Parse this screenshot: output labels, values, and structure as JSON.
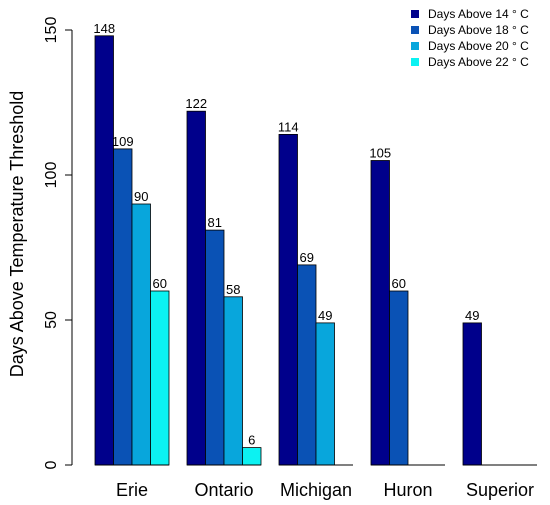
{
  "chart_data": {
    "type": "bar",
    "categories": [
      "Erie",
      "Ontario",
      "Michigan",
      "Huron",
      "Superior"
    ],
    "series": [
      {
        "name": "Days Above 14 ° C",
        "color": "#00008B",
        "values": [
          148,
          122,
          114,
          105,
          49
        ]
      },
      {
        "name": "Days Above 18 ° C",
        "color": "#0A52B5",
        "values": [
          109,
          81,
          69,
          60,
          0
        ]
      },
      {
        "name": "Days Above 20 ° C",
        "color": "#08A6DC",
        "values": [
          90,
          58,
          49,
          0,
          0
        ]
      },
      {
        "name": "Days Above 22 ° C",
        "color": "#0CF2F2",
        "values": [
          60,
          6,
          0,
          0,
          0
        ]
      }
    ],
    "data_labels": [
      [
        "148",
        "109",
        "90",
        "60"
      ],
      [
        "122",
        "81",
        "58",
        "6"
      ],
      [
        "114",
        "69",
        "49",
        ""
      ],
      [
        "105",
        "60",
        "",
        ""
      ],
      [
        "49",
        "",
        "",
        ""
      ]
    ],
    "ylabel": "Days Above Temperature Threshold",
    "xlabel": "",
    "ylim": [
      0,
      150
    ],
    "yticks": [
      "0",
      "50",
      "100",
      "150"
    ],
    "legend_position": "top-right",
    "grid": false
  }
}
